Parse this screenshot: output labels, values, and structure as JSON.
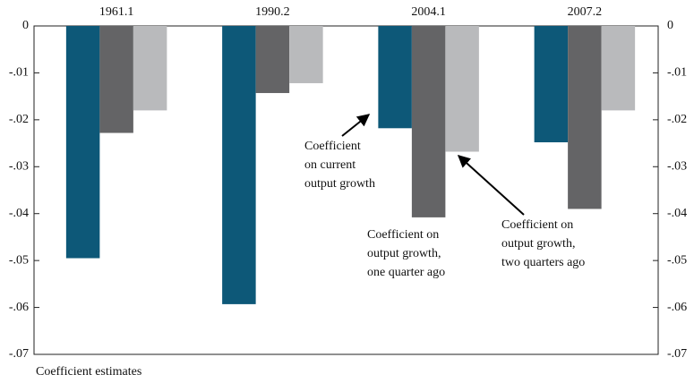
{
  "chart_data": {
    "type": "bar",
    "categories": [
      "1961.1",
      "1990.2",
      "2004.1",
      "2007.2"
    ],
    "series": [
      {
        "color": "#0d5878",
        "values": [
          -0.0495,
          -0.0593,
          -0.0218,
          -0.0248
        ]
      },
      {
        "color": "#646466",
        "values": [
          -0.0228,
          -0.0143,
          -0.0408,
          -0.039
        ]
      },
      {
        "color": "#b9babc",
        "values": [
          -0.018,
          -0.0122,
          -0.0268,
          -0.018
        ]
      }
    ],
    "ylim": [
      0,
      -0.07
    ],
    "yticks": [
      0,
      {
        "value": -0.01,
        "label": "-.01"
      },
      {
        "value": -0.02,
        "label": "-.02"
      },
      {
        "value": -0.03,
        "label": "-.03"
      },
      {
        "value": -0.04,
        "label": "-.04"
      },
      {
        "value": -0.05,
        "label": "-.05"
      },
      {
        "value": -0.06,
        "label": "-.06"
      },
      {
        "value": -0.07,
        "label": "-.07"
      }
    ],
    "annotations": [
      {
        "lines": [
          "Coefficient",
          "on current",
          "output growth"
        ]
      },
      {
        "lines": [
          "Coefficient on",
          "output growth,",
          "one quarter ago"
        ]
      },
      {
        "lines": [
          "Coefficient on",
          "output growth,",
          "two quarters ago"
        ]
      }
    ],
    "footer": "Coefficient estimates"
  }
}
